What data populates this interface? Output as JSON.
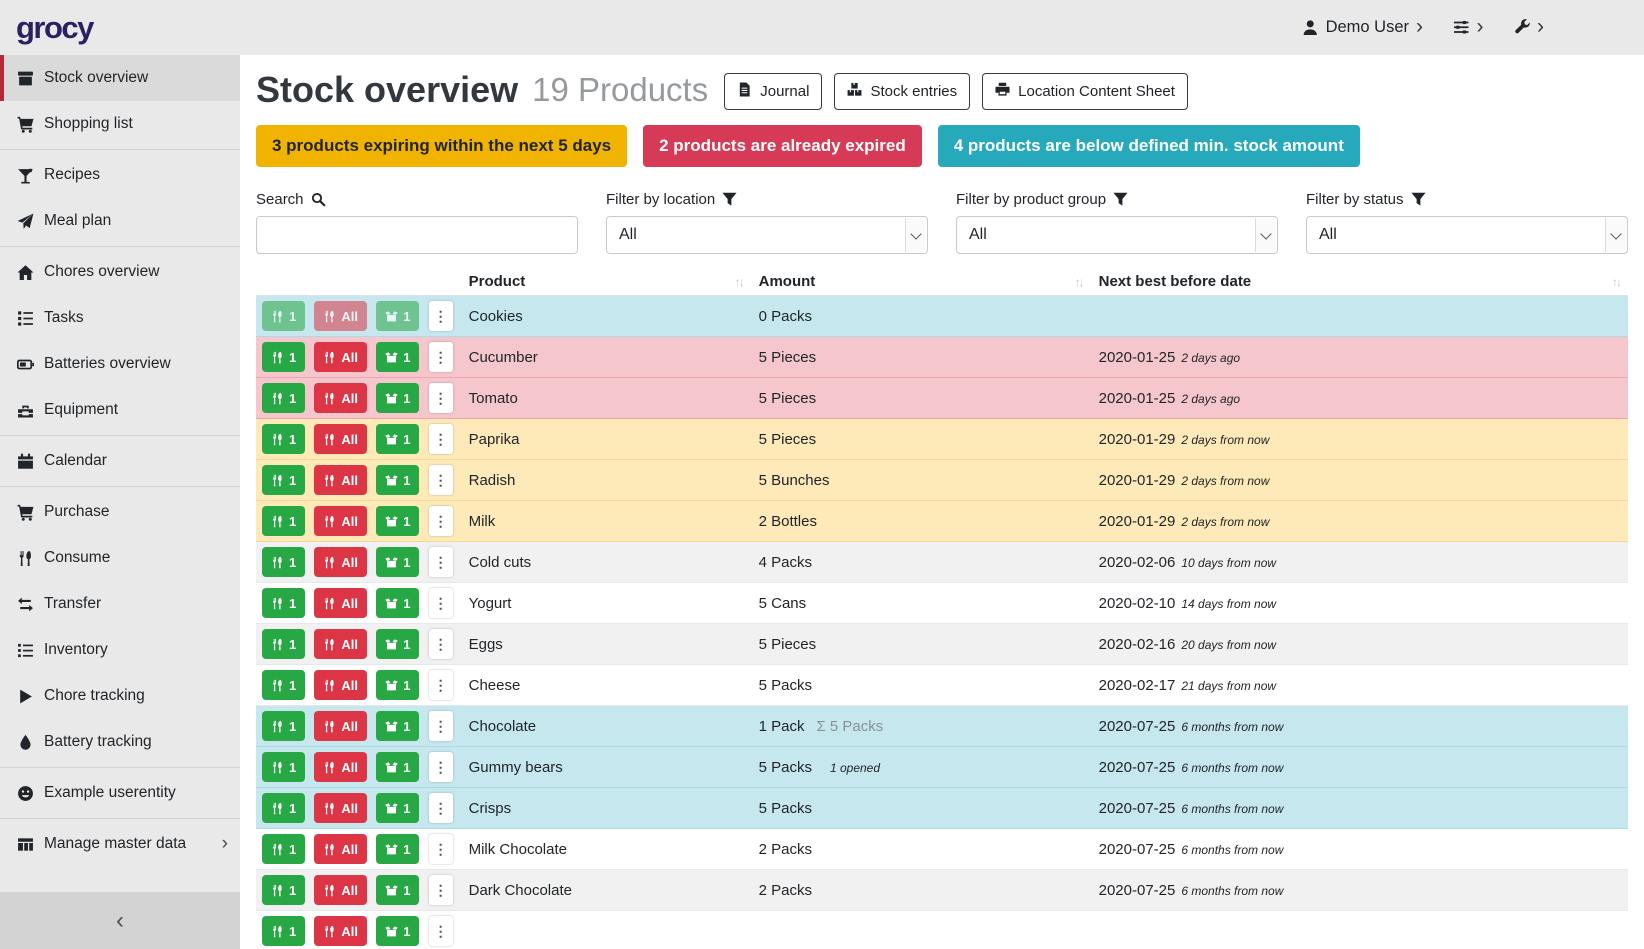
{
  "app": {
    "logo": "grocy"
  },
  "topbar": {
    "user_label": "Demo User"
  },
  "sidebar": {
    "items": [
      {
        "label": "Stock overview",
        "icon": "box",
        "active": true
      },
      {
        "label": "Shopping list",
        "icon": "cart"
      },
      {
        "label": "Recipes",
        "icon": "cocktail",
        "divider": true
      },
      {
        "label": "Meal plan",
        "icon": "paper-plane"
      },
      {
        "label": "Chores overview",
        "icon": "home",
        "divider": true
      },
      {
        "label": "Tasks",
        "icon": "tasks"
      },
      {
        "label": "Batteries overview",
        "icon": "battery"
      },
      {
        "label": "Equipment",
        "icon": "toolbox"
      },
      {
        "label": "Calendar",
        "icon": "calendar",
        "divider": true
      },
      {
        "label": "Purchase",
        "icon": "cart",
        "divider": true
      },
      {
        "label": "Consume",
        "icon": "utensils"
      },
      {
        "label": "Transfer",
        "icon": "transfer"
      },
      {
        "label": "Inventory",
        "icon": "list"
      },
      {
        "label": "Chore tracking",
        "icon": "play"
      },
      {
        "label": "Battery tracking",
        "icon": "droplet"
      },
      {
        "label": "Example userentity",
        "icon": "smiley",
        "divider": true
      },
      {
        "label": "Manage master data",
        "icon": "grid",
        "divider": true,
        "chevron": true
      }
    ]
  },
  "header": {
    "title": "Stock overview",
    "subtitle": "19 Products",
    "buttons": [
      {
        "label": "Journal",
        "icon": "file"
      },
      {
        "label": "Stock entries",
        "icon": "boxes"
      },
      {
        "label": "Location Content Sheet",
        "icon": "printer"
      }
    ]
  },
  "alerts": [
    {
      "text": "3 products expiring within the next 5 days",
      "type": "warning",
      "color": "#f0b400"
    },
    {
      "text": "2 products are already expired",
      "type": "danger",
      "color": "#d73a56"
    },
    {
      "text": "4 products are below defined min. stock amount",
      "type": "info",
      "color": "#27a9bc"
    }
  ],
  "filters": {
    "search": {
      "label": "Search",
      "value": ""
    },
    "location": {
      "label": "Filter by location",
      "value": "All"
    },
    "product_group": {
      "label": "Filter by product group",
      "value": "All"
    },
    "status": {
      "label": "Filter by status",
      "value": "All"
    }
  },
  "table": {
    "columns": {
      "product": "Product",
      "amount": "Amount",
      "date": "Next best before date"
    },
    "row_buttons": {
      "consume_one": "1",
      "consume_all": "All",
      "open_one": "1"
    },
    "rows": [
      {
        "product": "Cookies",
        "amount": "0 Packs",
        "amount_sum": "",
        "amount_note": "",
        "date": "",
        "date_note": "",
        "status": "info",
        "muted": true
      },
      {
        "product": "Cucumber",
        "amount": "5 Pieces",
        "amount_sum": "",
        "amount_note": "",
        "date": "2020-01-25",
        "date_note": "2 days ago",
        "status": "danger"
      },
      {
        "product": "Tomato",
        "amount": "5 Pieces",
        "amount_sum": "",
        "amount_note": "",
        "date": "2020-01-25",
        "date_note": "2 days ago",
        "status": "danger"
      },
      {
        "product": "Paprika",
        "amount": "5 Pieces",
        "amount_sum": "",
        "amount_note": "",
        "date": "2020-01-29",
        "date_note": "2 days from now",
        "status": "warning"
      },
      {
        "product": "Radish",
        "amount": "5 Bunches",
        "amount_sum": "",
        "amount_note": "",
        "date": "2020-01-29",
        "date_note": "2 days from now",
        "status": "warning"
      },
      {
        "product": "Milk",
        "amount": "2 Bottles",
        "amount_sum": "",
        "amount_note": "",
        "date": "2020-01-29",
        "date_note": "2 days from now",
        "status": "warning"
      },
      {
        "product": "Cold cuts",
        "amount": "4 Packs",
        "amount_sum": "",
        "amount_note": "",
        "date": "2020-02-06",
        "date_note": "10 days from now",
        "status": "stripe"
      },
      {
        "product": "Yogurt",
        "amount": "5 Cans",
        "amount_sum": "",
        "amount_note": "",
        "date": "2020-02-10",
        "date_note": "14 days from now",
        "status": "plain"
      },
      {
        "product": "Eggs",
        "amount": "5 Pieces",
        "amount_sum": "",
        "amount_note": "",
        "date": "2020-02-16",
        "date_note": "20 days from now",
        "status": "stripe"
      },
      {
        "product": "Cheese",
        "amount": "5 Packs",
        "amount_sum": "",
        "amount_note": "",
        "date": "2020-02-17",
        "date_note": "21 days from now",
        "status": "plain"
      },
      {
        "product": "Chocolate",
        "amount": "1 Pack",
        "amount_sum": "Σ 5 Packs",
        "amount_note": "",
        "date": "2020-07-25",
        "date_note": "6 months from now",
        "status": "info"
      },
      {
        "product": "Gummy bears",
        "amount": "5 Packs",
        "amount_sum": "",
        "amount_note": "1 opened",
        "date": "2020-07-25",
        "date_note": "6 months from now",
        "status": "info"
      },
      {
        "product": "Crisps",
        "amount": "5 Packs",
        "amount_sum": "",
        "amount_note": "",
        "date": "2020-07-25",
        "date_note": "6 months from now",
        "status": "info"
      },
      {
        "product": "Milk Chocolate",
        "amount": "2 Packs",
        "amount_sum": "",
        "amount_note": "",
        "date": "2020-07-25",
        "date_note": "6 months from now",
        "status": "plain"
      },
      {
        "product": "Dark Chocolate",
        "amount": "2 Packs",
        "amount_sum": "",
        "amount_note": "",
        "date": "2020-07-25",
        "date_note": "6 months from now",
        "status": "stripe"
      },
      {
        "product": "",
        "amount": "",
        "amount_sum": "",
        "amount_note": "",
        "date": "",
        "date_note": "",
        "status": "plain",
        "partial": true
      }
    ]
  },
  "colors": {
    "navbar_bg": "#e9e9e9",
    "logo": "#2b2160",
    "active_item_border": "#b02a37",
    "button_green": "#28a745",
    "button_red": "#dc3545",
    "row_info": "#c7e7ef",
    "row_danger": "#f5c6cb",
    "row_warning": "#feeab8",
    "row_stripe": "#f1f1f1"
  }
}
